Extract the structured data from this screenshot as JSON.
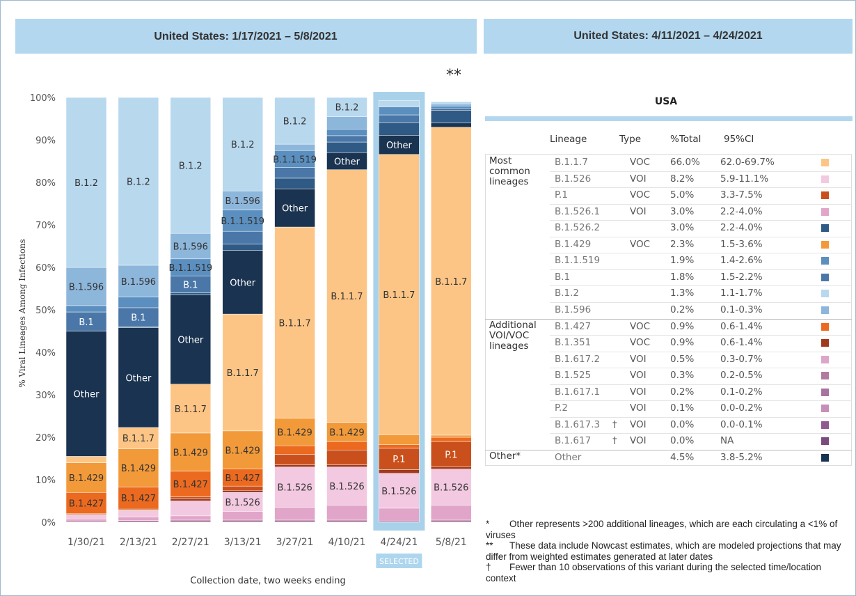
{
  "chart_data": {
    "type": "bar",
    "stacked": true,
    "title": "United States: 1/17/2021 – 5/8/2021",
    "note": "**",
    "ylabel": "% Viral Lineages Among Infections",
    "xlabel": "Collection date, two weeks ending",
    "selected": "4/24/21",
    "selected_label": "SELECTED",
    "categories": [
      "1/30/21",
      "2/13/21",
      "2/27/21",
      "3/13/21",
      "3/27/21",
      "4/10/21",
      "4/24/21",
      "5/8/21"
    ],
    "ylim": [
      0,
      100
    ],
    "yticks": [
      {
        "value": 0,
        "label": "0%"
      },
      {
        "value": 10,
        "label": "10%"
      },
      {
        "value": 20,
        "label": "20%"
      },
      {
        "value": 30,
        "label": "30%"
      },
      {
        "value": 40,
        "label": "40%"
      },
      {
        "value": 50,
        "label": "50%"
      },
      {
        "value": 60,
        "label": "60%"
      },
      {
        "value": 70,
        "label": "70%"
      },
      {
        "value": 80,
        "label": "80%"
      },
      {
        "value": 90,
        "label": "90%"
      },
      {
        "value": 100,
        "label": "100%"
      }
    ],
    "grid": false,
    "series": [
      {
        "name": "B.1.525",
        "color": "#b07aa1",
        "values": [
          0.3,
          0.4,
          0.5,
          0.5,
          0.5,
          0.5,
          0.3,
          0.5
        ]
      },
      {
        "name": "B.1.526.1",
        "color": "#e0a5c8",
        "values": [
          0.4,
          0.8,
          1,
          2,
          3,
          3.5,
          3.0,
          3.5
        ]
      },
      {
        "name": "B.1.526",
        "color": "#f2c9e0",
        "values": [
          1,
          1.5,
          3.5,
          4.5,
          9.5,
          9,
          8.2,
          8.5
        ]
      },
      {
        "name": "B.1.351",
        "color": "#a0391e",
        "values": [
          0.1,
          0.1,
          0.5,
          0.5,
          0.5,
          0.5,
          0.9,
          0.5
        ]
      },
      {
        "name": "P.1",
        "color": "#c9501c",
        "values": [
          0.2,
          0.3,
          0.5,
          1,
          2.5,
          3.5,
          5.0,
          6
        ]
      },
      {
        "name": "B.1.427",
        "color": "#ec6a1f",
        "values": [
          5,
          5.2,
          6,
          4,
          2,
          2,
          0.9,
          1
        ]
      },
      {
        "name": "B.1.429",
        "color": "#f29a3a",
        "values": [
          7,
          9,
          9,
          9,
          6.5,
          4.5,
          2.3,
          0.5
        ]
      },
      {
        "name": "B.1.1.7",
        "color": "#fdc585",
        "values": [
          1.5,
          5,
          11.5,
          27.5,
          45,
          59.5,
          66.0,
          72.5
        ]
      },
      {
        "name": "Other",
        "color": "#1a3350",
        "values": [
          29.5,
          23.5,
          21,
          15,
          9,
          4,
          4.5,
          1
        ]
      },
      {
        "name": "B.1.526.2",
        "color": "#2f5a85",
        "values": [
          0,
          0.2,
          0.5,
          1.5,
          2.5,
          2.5,
          3.0,
          3
        ]
      },
      {
        "name": "B.1",
        "color": "#4a77a8",
        "values": [
          4.5,
          4.5,
          4,
          3,
          2.5,
          1.5,
          1.8,
          0.5
        ]
      },
      {
        "name": "B.1.1.519",
        "color": "#5b8fbf",
        "values": [
          1.5,
          2.5,
          4,
          5,
          4,
          1.5,
          1.9,
          0.5
        ]
      },
      {
        "name": "B.1.596",
        "color": "#8db6db",
        "values": [
          9,
          7.5,
          6,
          4.5,
          1.5,
          3,
          0.2,
          0.5
        ]
      },
      {
        "name": "B.1.2",
        "color": "#b8d8ee",
        "values": [
          40,
          39.5,
          32,
          22,
          11,
          4.5,
          1.3,
          0.5
        ]
      }
    ]
  },
  "panel": {
    "title": "United States: 4/11/2021 – 4/24/2021",
    "region": "USA",
    "columns": [
      "Lineage",
      "Type",
      "%Total",
      "95%CI"
    ],
    "groups": [
      {
        "label": "Most common lineages",
        "rows": [
          {
            "lineage": "B.1.1.7",
            "type": "VOC",
            "total": "66.0%",
            "ci": "62.0-69.7%",
            "color": "#fdc585"
          },
          {
            "lineage": "B.1.526",
            "type": "VOI",
            "total": "8.2%",
            "ci": "5.9-11.1%",
            "color": "#f2c9e0"
          },
          {
            "lineage": "P.1",
            "type": "VOC",
            "total": "5.0%",
            "ci": "3.3-7.5%",
            "color": "#c9501c"
          },
          {
            "lineage": "B.1.526.1",
            "type": "VOI",
            "total": "3.0%",
            "ci": "2.2-4.0%",
            "color": "#e0a5c8"
          },
          {
            "lineage": "B.1.526.2",
            "total": "3.0%",
            "ci": "2.2-4.0%",
            "color": "#2f5a85"
          },
          {
            "lineage": "B.1.429",
            "type": "VOC",
            "total": "2.3%",
            "ci": "1.5-3.6%",
            "color": "#f29a3a"
          },
          {
            "lineage": "B.1.1.519",
            "total": "1.9%",
            "ci": "1.4-2.6%",
            "color": "#5b8fbf"
          },
          {
            "lineage": "B.1",
            "total": "1.8%",
            "ci": "1.5-2.2%",
            "color": "#4a77a8"
          },
          {
            "lineage": "B.1.2",
            "total": "1.3%",
            "ci": "1.1-1.7%",
            "color": "#b8d8ee"
          },
          {
            "lineage": "B.1.596",
            "total": "0.2%",
            "ci": "0.1-0.3%",
            "color": "#8db6db"
          }
        ]
      },
      {
        "label": "Additional VOI/VOC lineages",
        "rows": [
          {
            "lineage": "B.1.427",
            "type": "VOC",
            "total": "0.9%",
            "ci": "0.6-1.4%",
            "color": "#ec6a1f"
          },
          {
            "lineage": "B.1.351",
            "type": "VOC",
            "total": "0.9%",
            "ci": "0.6-1.4%",
            "color": "#a0391e"
          },
          {
            "lineage": "B.1.617.2",
            "type": "VOI",
            "total": "0.5%",
            "ci": "0.3-0.7%",
            "color": "#dba6c9"
          },
          {
            "lineage": "B.1.525",
            "type": "VOI",
            "total": "0.3%",
            "ci": "0.2-0.5%",
            "color": "#b07aa1"
          },
          {
            "lineage": "B.1.617.1",
            "type": "VOI",
            "total": "0.2%",
            "ci": "0.1-0.2%",
            "color": "#a8739e"
          },
          {
            "lineage": "P.2",
            "type": "VOI",
            "total": "0.1%",
            "ci": "0.0-0.2%",
            "color": "#c58fb8"
          },
          {
            "lineage": "B.1.617.3",
            "mark": "†",
            "type": "VOI",
            "total": "0.0%",
            "ci": "0.0-0.1%",
            "color": "#8f5a8f"
          },
          {
            "lineage": "B.1.617",
            "mark": "†",
            "type": "VOI",
            "total": "0.0%",
            "ci": "NA",
            "color": "#7b4a7e"
          }
        ]
      },
      {
        "label": "Other*",
        "rows": [
          {
            "lineage": "Other",
            "total": "4.5%",
            "ci": "3.8-5.2%",
            "color": "#1a3350"
          }
        ]
      }
    ],
    "footnotes": [
      {
        "symbol": "*",
        "text": "Other represents >200 additional lineages, which are each circulating a <1% of viruses"
      },
      {
        "symbol": "**",
        "text": "These data include Nowcast estimates, which are modeled projections that may differ from weighted estimates generated at later dates"
      },
      {
        "symbol": "†",
        "text": "Fewer than 10 observations of this variant during the selected time/location context"
      }
    ]
  }
}
